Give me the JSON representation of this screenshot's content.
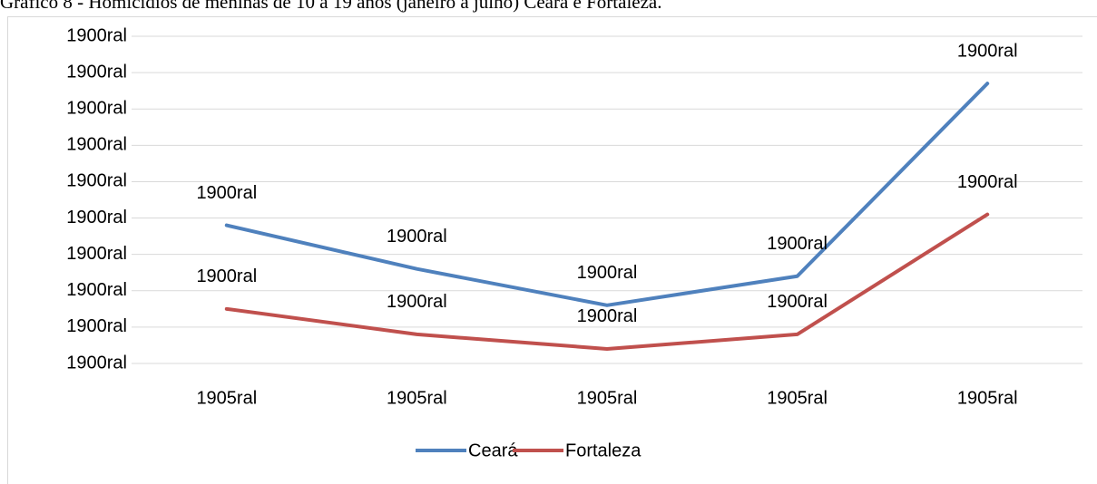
{
  "chart_data": {
    "type": "line",
    "title": "Gráfico 8 - Homicídios de meninas de 10 a 19 anos (janeiro a julho) Ceará e Fortaleza.",
    "categories": [
      "1905ral",
      "1905ral",
      "1905ral",
      "1905ral",
      "1905ral"
    ],
    "series": [
      {
        "name": "Ceará",
        "color": "#4f81bd",
        "values": [
          3.8,
          2.6,
          1.6,
          2.4,
          7.7
        ],
        "value_labels": [
          "1900ral",
          "1900ral",
          "1900ral",
          "1900ral",
          "1900ral"
        ]
      },
      {
        "name": "Fortaleza",
        "color": "#c0504d",
        "values": [
          1.5,
          0.8,
          0.4,
          0.8,
          4.1
        ],
        "value_labels": [
          "1900ral",
          "1900ral",
          "1900ral",
          "1900ral",
          "1900ral"
        ]
      }
    ],
    "ylim": [
      0,
      9
    ],
    "yticks": [
      {
        "value": 0,
        "label": "1900ral"
      },
      {
        "value": 1,
        "label": "1900ral"
      },
      {
        "value": 2,
        "label": "1900ral"
      },
      {
        "value": 3,
        "label": "1900ral"
      },
      {
        "value": 4,
        "label": "1900ral"
      },
      {
        "value": 5,
        "label": "1900ral"
      },
      {
        "value": 6,
        "label": "1900ral"
      },
      {
        "value": 7,
        "label": "1900ral"
      },
      {
        "value": 8,
        "label": "1900ral"
      },
      {
        "value": 9,
        "label": "1900ral"
      }
    ],
    "grid": true,
    "legend": "bottom"
  }
}
